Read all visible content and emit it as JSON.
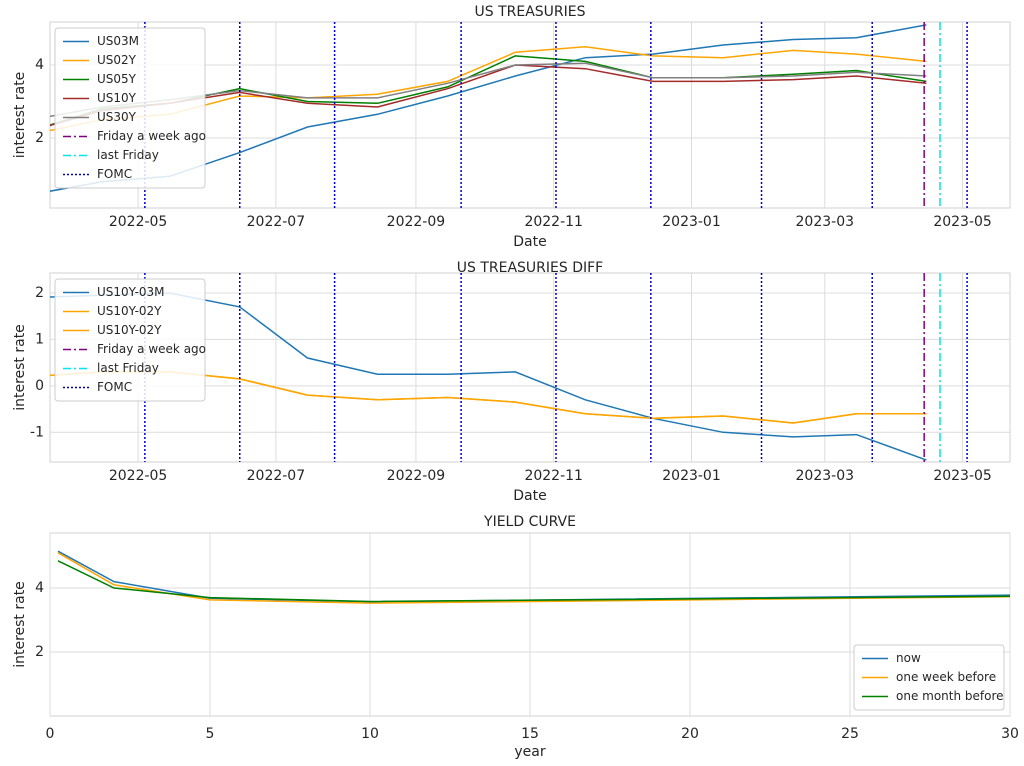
{
  "chart_data": [
    {
      "type": "line",
      "title": "US TREASURIES",
      "xlabel": "Date",
      "ylabel": "interest rate",
      "x_dates": true,
      "x": [
        "2022-03",
        "2022-04",
        "2022-05",
        "2022-06",
        "2022-07",
        "2022-08",
        "2022-09",
        "2022-10",
        "2022-11",
        "2022-12",
        "2023-01",
        "2023-02",
        "2023-03",
        "2023-04"
      ],
      "series": [
        {
          "name": "US03M",
          "color": "#1f77b4",
          "values": [
            0.45,
            0.8,
            0.95,
            1.6,
            2.3,
            2.65,
            3.15,
            3.7,
            4.2,
            4.3,
            4.55,
            4.7,
            4.75,
            5.1
          ]
        },
        {
          "name": "US02Y",
          "color": "#ffa500",
          "values": [
            2.1,
            2.5,
            2.65,
            3.15,
            3.1,
            3.2,
            3.55,
            4.35,
            4.5,
            4.25,
            4.2,
            4.4,
            4.3,
            4.1
          ]
        },
        {
          "name": "US05Y",
          "color": "#008000",
          "values": [
            2.2,
            2.8,
            2.95,
            3.35,
            3.0,
            2.95,
            3.4,
            4.25,
            4.1,
            3.65,
            3.65,
            3.75,
            3.85,
            3.55
          ]
        },
        {
          "name": "US10Y",
          "color": "#a52a2a",
          "values": [
            2.2,
            2.75,
            2.95,
            3.25,
            2.95,
            2.85,
            3.35,
            4.0,
            3.9,
            3.55,
            3.55,
            3.6,
            3.7,
            3.5
          ]
        },
        {
          "name": "US30Y",
          "color": "#808080",
          "values": [
            2.5,
            2.85,
            3.05,
            3.3,
            3.1,
            3.1,
            3.5,
            4.0,
            4.05,
            3.65,
            3.65,
            3.7,
            3.8,
            3.7
          ]
        }
      ],
      "vlines": [
        {
          "name": "Friday a week ago",
          "color": "#800080",
          "style": "dashdot",
          "dates": [
            "2023-04-14"
          ]
        },
        {
          "name": "last Friday",
          "color": "#00e5ee",
          "style": "dashdot",
          "dates": [
            "2023-04-21"
          ]
        },
        {
          "name": "FOMC",
          "color": "#0000cd",
          "style": "dotted",
          "dates": [
            "2022-05-04",
            "2022-06-15",
            "2022-07-27",
            "2022-09-21",
            "2022-11-02",
            "2022-12-14",
            "2023-02-01",
            "2023-03-22",
            "2023-05-03"
          ]
        }
      ],
      "xlim": [
        "2022-03-23",
        "2023-05-22"
      ],
      "xticks": [
        "2022-05",
        "2022-07",
        "2022-09",
        "2022-11",
        "2023-01",
        "2023-03",
        "2023-05"
      ],
      "ylim": [
        0.08,
        5.18
      ],
      "yticks": [
        2,
        4
      ],
      "grid": true,
      "legend": "upper left"
    },
    {
      "type": "line",
      "title": "US TREASURIES DIFF",
      "xlabel": "Date",
      "ylabel": "interest rate",
      "x_dates": true,
      "x": [
        "2022-03",
        "2022-04",
        "2022-05",
        "2022-06",
        "2022-07",
        "2022-08",
        "2022-09",
        "2022-10",
        "2022-11",
        "2022-12",
        "2023-01",
        "2023-02",
        "2023-03",
        "2023-04"
      ],
      "series": [
        {
          "name": "US10Y-03M",
          "color": "#1f77b4",
          "values": [
            1.9,
            1.95,
            2.0,
            1.7,
            0.6,
            0.25,
            0.25,
            0.3,
            -0.3,
            -0.7,
            -1.0,
            -1.1,
            -1.05,
            -1.6
          ]
        },
        {
          "name": "US10Y-02Y",
          "color": "#ffa500",
          "values": [
            0.2,
            0.3,
            0.3,
            0.15,
            -0.2,
            -0.3,
            -0.25,
            -0.35,
            -0.6,
            -0.7,
            -0.65,
            -0.8,
            -0.6,
            -0.6
          ]
        },
        {
          "name": "US10Y-02Y",
          "color": "#ffa500",
          "values": [
            0.2,
            0.3,
            0.3,
            0.15,
            -0.2,
            -0.3,
            -0.25,
            -0.35,
            -0.6,
            -0.7,
            -0.65,
            -0.8,
            -0.6,
            -0.6
          ]
        }
      ],
      "vlines": [
        {
          "name": "Friday a week ago",
          "color": "#800080",
          "style": "dashdot",
          "dates": [
            "2023-04-14"
          ]
        },
        {
          "name": "last Friday",
          "color": "#00e5ee",
          "style": "dashdot",
          "dates": [
            "2023-04-21"
          ]
        },
        {
          "name": "FOMC",
          "color": "#0000cd",
          "style": "dotted",
          "dates": [
            "2022-05-04",
            "2022-06-15",
            "2022-07-27",
            "2022-09-21",
            "2022-11-02",
            "2022-12-14",
            "2023-02-01",
            "2023-03-22",
            "2023-05-03"
          ]
        }
      ],
      "xlim": [
        "2022-03-23",
        "2023-05-22"
      ],
      "xticks": [
        "2022-05",
        "2022-07",
        "2022-09",
        "2022-11",
        "2023-01",
        "2023-03",
        "2023-05"
      ],
      "ylim": [
        -1.64,
        2.43
      ],
      "yticks": [
        -1,
        0,
        1,
        2
      ],
      "grid": true,
      "legend": "upper left"
    },
    {
      "type": "line",
      "title": "YIELD CURVE",
      "xlabel": "year",
      "ylabel": "interest rate",
      "x_dates": false,
      "x": [
        0.25,
        2,
        5,
        10,
        30
      ],
      "series": [
        {
          "name": "now",
          "color": "#1f77b4",
          "values": [
            5.15,
            4.2,
            3.68,
            3.57,
            3.78
          ]
        },
        {
          "name": "one week before",
          "color": "#ffa500",
          "values": [
            5.1,
            4.1,
            3.63,
            3.53,
            3.73
          ]
        },
        {
          "name": "one month before",
          "color": "#008000",
          "values": [
            4.85,
            4.0,
            3.7,
            3.58,
            3.74
          ]
        }
      ],
      "xlim": [
        0,
        30
      ],
      "xticks": [
        0,
        5,
        10,
        15,
        20,
        25,
        30
      ],
      "ylim": [
        0,
        5.72
      ],
      "yticks": [
        2,
        4
      ],
      "grid": true,
      "legend": "lower right"
    }
  ]
}
